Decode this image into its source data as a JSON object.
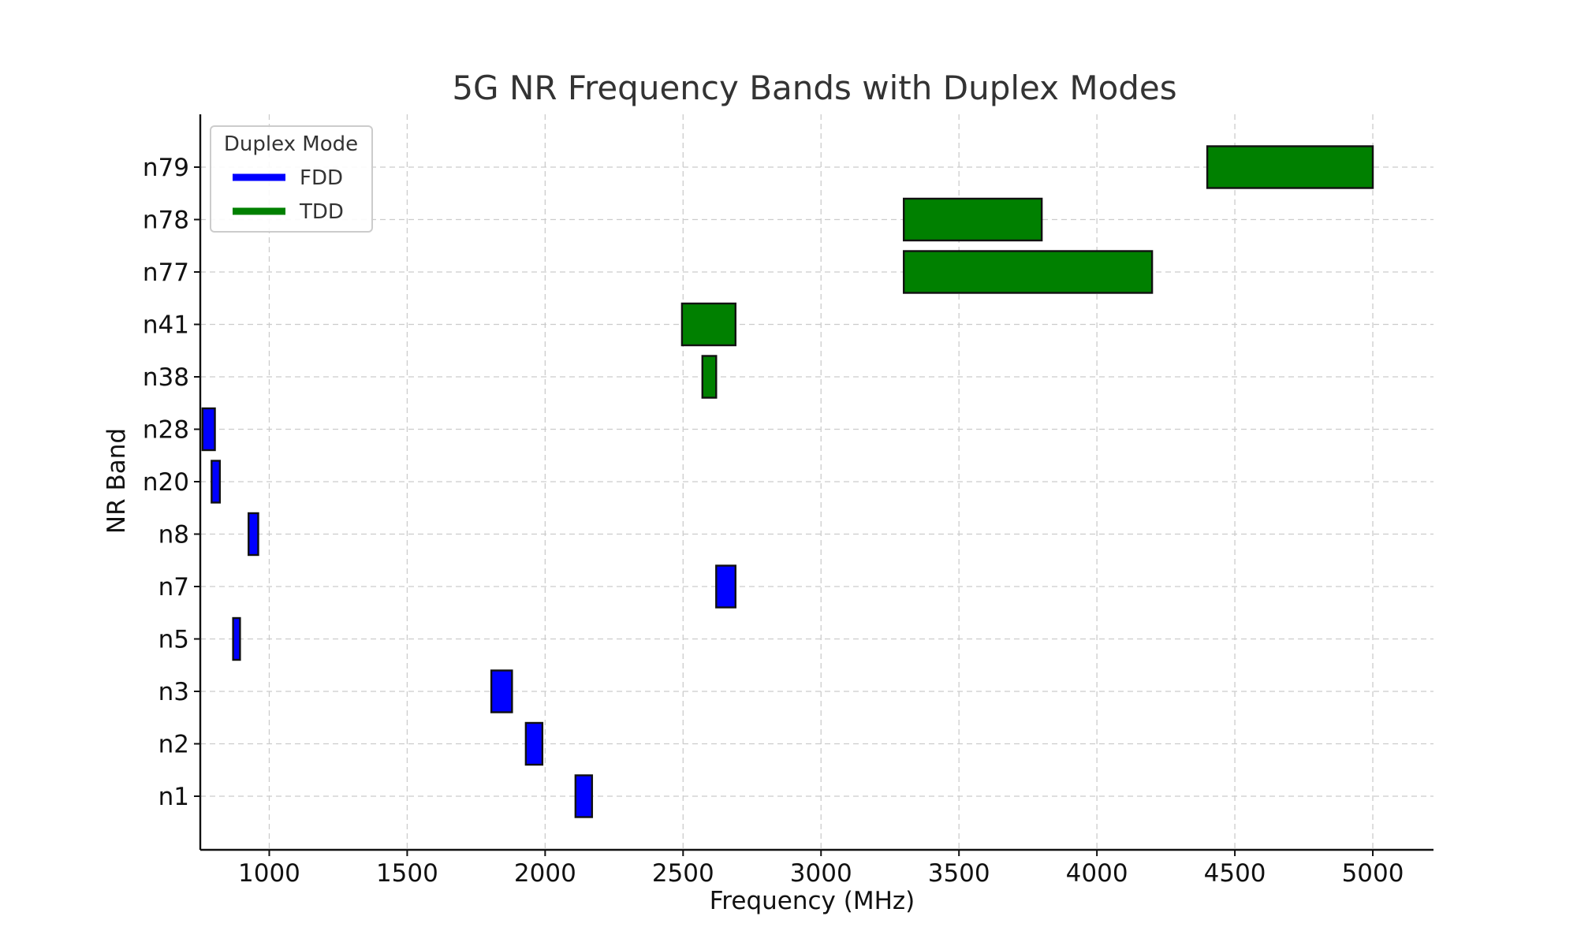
{
  "chart_data": {
    "type": "bar",
    "orientation": "horizontal-range",
    "title": "5G NR Frequency Bands with Duplex Modes",
    "xlabel": "Frequency (MHz)",
    "ylabel": "NR Band",
    "xlim": [
      750,
      5220
    ],
    "xticks": [
      1000,
      1500,
      2000,
      2500,
      3000,
      3500,
      4000,
      4500,
      5000
    ],
    "grid": true,
    "legend": {
      "title": "Duplex Mode",
      "placement": "top-left",
      "entries": [
        {
          "label": "FDD",
          "color": "#0000ff"
        },
        {
          "label": "TDD",
          "color": "#008000"
        }
      ]
    },
    "categories": [
      "n1",
      "n2",
      "n3",
      "n5",
      "n7",
      "n8",
      "n20",
      "n28",
      "n38",
      "n41",
      "n77",
      "n78",
      "n79"
    ],
    "bands": [
      {
        "band": "n1",
        "start": 2110,
        "end": 2170,
        "mode": "FDD"
      },
      {
        "band": "n2",
        "start": 1930,
        "end": 1990,
        "mode": "FDD"
      },
      {
        "band": "n3",
        "start": 1805,
        "end": 1880,
        "mode": "FDD"
      },
      {
        "band": "n5",
        "start": 869,
        "end": 894,
        "mode": "FDD"
      },
      {
        "band": "n7",
        "start": 2620,
        "end": 2690,
        "mode": "FDD"
      },
      {
        "band": "n8",
        "start": 925,
        "end": 960,
        "mode": "FDD"
      },
      {
        "band": "n20",
        "start": 791,
        "end": 821,
        "mode": "FDD"
      },
      {
        "band": "n28",
        "start": 758,
        "end": 803,
        "mode": "FDD"
      },
      {
        "band": "n38",
        "start": 2570,
        "end": 2620,
        "mode": "TDD"
      },
      {
        "band": "n41",
        "start": 2496,
        "end": 2690,
        "mode": "TDD"
      },
      {
        "band": "n77",
        "start": 3300,
        "end": 4200,
        "mode": "TDD"
      },
      {
        "band": "n78",
        "start": 3300,
        "end": 3800,
        "mode": "TDD"
      },
      {
        "band": "n79",
        "start": 4400,
        "end": 5000,
        "mode": "TDD"
      }
    ],
    "colors": {
      "FDD": "#0000ff",
      "TDD": "#008000"
    }
  }
}
